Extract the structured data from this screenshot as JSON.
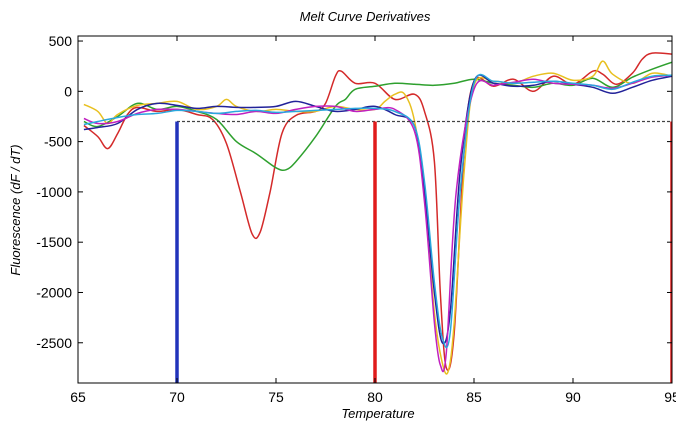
{
  "chart_data": {
    "type": "line",
    "title": "Melt Curve Derivatives",
    "xlabel": "Temperature",
    "ylabel": "Fluorescence (dF / dT)",
    "xlim": [
      65,
      95
    ],
    "ylim": [
      -2900,
      550
    ],
    "x_ticks": [
      65,
      70,
      75,
      80,
      85,
      90,
      95
    ],
    "y_ticks": [
      500,
      0,
      -500,
      -1000,
      -1500,
      -2000,
      -2500
    ],
    "grid": false,
    "threshold": {
      "y": -300,
      "x_start": 70,
      "x_end": 95,
      "color": "#444444",
      "style": "dashed"
    },
    "markers": [
      {
        "x": 70,
        "y_top": -300,
        "color": "#2233bb"
      },
      {
        "x": 80,
        "y_top": -300,
        "color": "#e01b1b"
      },
      {
        "x": 95,
        "y_top": -300,
        "color": "#e01b1b"
      }
    ],
    "series": [
      {
        "color": "#d42a2a",
        "points": [
          [
            65.3,
            -340
          ],
          [
            66,
            -450
          ],
          [
            66.5,
            -570
          ],
          [
            67,
            -420
          ],
          [
            67.5,
            -230
          ],
          [
            68,
            -160
          ],
          [
            69,
            -200
          ],
          [
            70,
            -180
          ],
          [
            71,
            -230
          ],
          [
            71.8,
            -280
          ],
          [
            72.5,
            -520
          ],
          [
            73.2,
            -1000
          ],
          [
            73.8,
            -1420
          ],
          [
            74.2,
            -1400
          ],
          [
            74.7,
            -1000
          ],
          [
            75.3,
            -420
          ],
          [
            76,
            -240
          ],
          [
            77,
            -200
          ],
          [
            77.5,
            -120
          ],
          [
            78,
            150
          ],
          [
            78.3,
            200
          ],
          [
            79,
            80
          ],
          [
            80,
            80
          ],
          [
            81,
            -80
          ],
          [
            82,
            -30
          ],
          [
            82.5,
            -200
          ],
          [
            83,
            -700
          ],
          [
            83.3,
            -2000
          ],
          [
            83.6,
            -2750
          ],
          [
            84,
            -2400
          ],
          [
            84.5,
            -600
          ],
          [
            85,
            100
          ],
          [
            86,
            50
          ],
          [
            87,
            120
          ],
          [
            88,
            0
          ],
          [
            89,
            150
          ],
          [
            90,
            70
          ],
          [
            91,
            200
          ],
          [
            91.5,
            170
          ],
          [
            92.2,
            70
          ],
          [
            93,
            180
          ],
          [
            93.5,
            320
          ],
          [
            94,
            380
          ],
          [
            95,
            370
          ]
        ]
      },
      {
        "color": "#2ea02e",
        "points": [
          [
            65.3,
            -300
          ],
          [
            66,
            -350
          ],
          [
            67,
            -250
          ],
          [
            68,
            -120
          ],
          [
            69,
            -180
          ],
          [
            70,
            -150
          ],
          [
            71,
            -200
          ],
          [
            72,
            -280
          ],
          [
            73,
            -500
          ],
          [
            74,
            -620
          ],
          [
            75,
            -760
          ],
          [
            75.5,
            -780
          ],
          [
            76,
            -700
          ],
          [
            77,
            -450
          ],
          [
            78,
            -150
          ],
          [
            78.5,
            -80
          ],
          [
            79,
            20
          ],
          [
            80,
            50
          ],
          [
            81,
            80
          ],
          [
            82,
            70
          ],
          [
            83,
            60
          ],
          [
            84,
            80
          ],
          [
            85,
            120
          ],
          [
            86,
            80
          ],
          [
            87,
            60
          ],
          [
            88,
            40
          ],
          [
            89,
            80
          ],
          [
            90,
            60
          ],
          [
            91,
            130
          ],
          [
            92,
            40
          ],
          [
            93,
            140
          ],
          [
            94,
            220
          ],
          [
            95,
            290
          ]
        ]
      },
      {
        "color": "#e8c020",
        "points": [
          [
            65.3,
            -130
          ],
          [
            66,
            -200
          ],
          [
            66.5,
            -320
          ],
          [
            67,
            -230
          ],
          [
            68,
            -140
          ],
          [
            69,
            -120
          ],
          [
            70,
            -100
          ],
          [
            71,
            -180
          ],
          [
            72,
            -150
          ],
          [
            72.5,
            -80
          ],
          [
            73,
            -150
          ],
          [
            74,
            -200
          ],
          [
            75,
            -180
          ],
          [
            76,
            -200
          ],
          [
            77,
            -200
          ],
          [
            78,
            -150
          ],
          [
            79,
            -180
          ],
          [
            80,
            -180
          ],
          [
            80.5,
            -100
          ],
          [
            81,
            -30
          ],
          [
            81.5,
            -30
          ],
          [
            82,
            -300
          ],
          [
            82.5,
            -1000
          ],
          [
            83,
            -2200
          ],
          [
            83.4,
            -2700
          ],
          [
            83.7,
            -2780
          ],
          [
            84,
            -2300
          ],
          [
            84.5,
            -800
          ],
          [
            85,
            60
          ],
          [
            86,
            100
          ],
          [
            87,
            80
          ],
          [
            88,
            150
          ],
          [
            89,
            180
          ],
          [
            90,
            110
          ],
          [
            91,
            150
          ],
          [
            91.5,
            300
          ],
          [
            92,
            170
          ],
          [
            93,
            80
          ],
          [
            94,
            180
          ],
          [
            95,
            150
          ]
        ]
      },
      {
        "color": "#222299",
        "points": [
          [
            65.3,
            -380
          ],
          [
            66,
            -360
          ],
          [
            67,
            -320
          ],
          [
            68,
            -180
          ],
          [
            69,
            -120
          ],
          [
            70,
            -140
          ],
          [
            71,
            -170
          ],
          [
            72,
            -150
          ],
          [
            73,
            -160
          ],
          [
            74,
            -160
          ],
          [
            75,
            -150
          ],
          [
            76,
            -100
          ],
          [
            77,
            -150
          ],
          [
            78,
            -200
          ],
          [
            79,
            -180
          ],
          [
            80,
            -150
          ],
          [
            81,
            -230
          ],
          [
            82,
            -350
          ],
          [
            82.5,
            -1000
          ],
          [
            83,
            -2000
          ],
          [
            83.4,
            -2500
          ],
          [
            83.8,
            -2200
          ],
          [
            84.3,
            -800
          ],
          [
            85,
            100
          ],
          [
            86,
            80
          ],
          [
            87,
            50
          ],
          [
            88,
            60
          ],
          [
            89,
            100
          ],
          [
            90,
            70
          ],
          [
            91,
            40
          ],
          [
            92,
            -20
          ],
          [
            93,
            40
          ],
          [
            94,
            110
          ],
          [
            95,
            150
          ]
        ]
      },
      {
        "color": "#c020c0",
        "points": [
          [
            65.3,
            -270
          ],
          [
            66,
            -320
          ],
          [
            67,
            -300
          ],
          [
            68,
            -220
          ],
          [
            69,
            -180
          ],
          [
            70,
            -180
          ],
          [
            71,
            -200
          ],
          [
            72,
            -220
          ],
          [
            73,
            -230
          ],
          [
            74,
            -200
          ],
          [
            75,
            -220
          ],
          [
            76,
            -180
          ],
          [
            77,
            -150
          ],
          [
            78,
            -150
          ],
          [
            79,
            -200
          ],
          [
            80,
            -180
          ],
          [
            81,
            -180
          ],
          [
            82,
            -400
          ],
          [
            82.5,
            -1100
          ],
          [
            83,
            -2300
          ],
          [
            83.3,
            -2720
          ],
          [
            83.6,
            -2600
          ],
          [
            84.1,
            -1000
          ],
          [
            85,
            20
          ],
          [
            86,
            60
          ],
          [
            87,
            90
          ],
          [
            88,
            120
          ],
          [
            89,
            80
          ],
          [
            90,
            70
          ],
          [
            91,
            60
          ],
          [
            92,
            30
          ],
          [
            93,
            80
          ],
          [
            94,
            140
          ],
          [
            95,
            160
          ]
        ]
      },
      {
        "color": "#29a7dd",
        "points": [
          [
            65.3,
            -330
          ],
          [
            66,
            -300
          ],
          [
            67,
            -260
          ],
          [
            68,
            -230
          ],
          [
            69,
            -220
          ],
          [
            70,
            -190
          ],
          [
            71,
            -200
          ],
          [
            72,
            -220
          ],
          [
            73,
            -200
          ],
          [
            74,
            -190
          ],
          [
            75,
            -210
          ],
          [
            76,
            -200
          ],
          [
            77,
            -190
          ],
          [
            78,
            -180
          ],
          [
            79,
            -170
          ],
          [
            80,
            -170
          ],
          [
            81,
            -200
          ],
          [
            82,
            -350
          ],
          [
            82.5,
            -900
          ],
          [
            83,
            -1900
          ],
          [
            83.4,
            -2450
          ],
          [
            83.8,
            -2400
          ],
          [
            84.3,
            -1000
          ],
          [
            85,
            80
          ],
          [
            86,
            100
          ],
          [
            87,
            80
          ],
          [
            88,
            90
          ],
          [
            89,
            100
          ],
          [
            90,
            80
          ],
          [
            91,
            60
          ],
          [
            92,
            20
          ],
          [
            93,
            90
          ],
          [
            94,
            150
          ],
          [
            95,
            160
          ]
        ]
      }
    ]
  }
}
